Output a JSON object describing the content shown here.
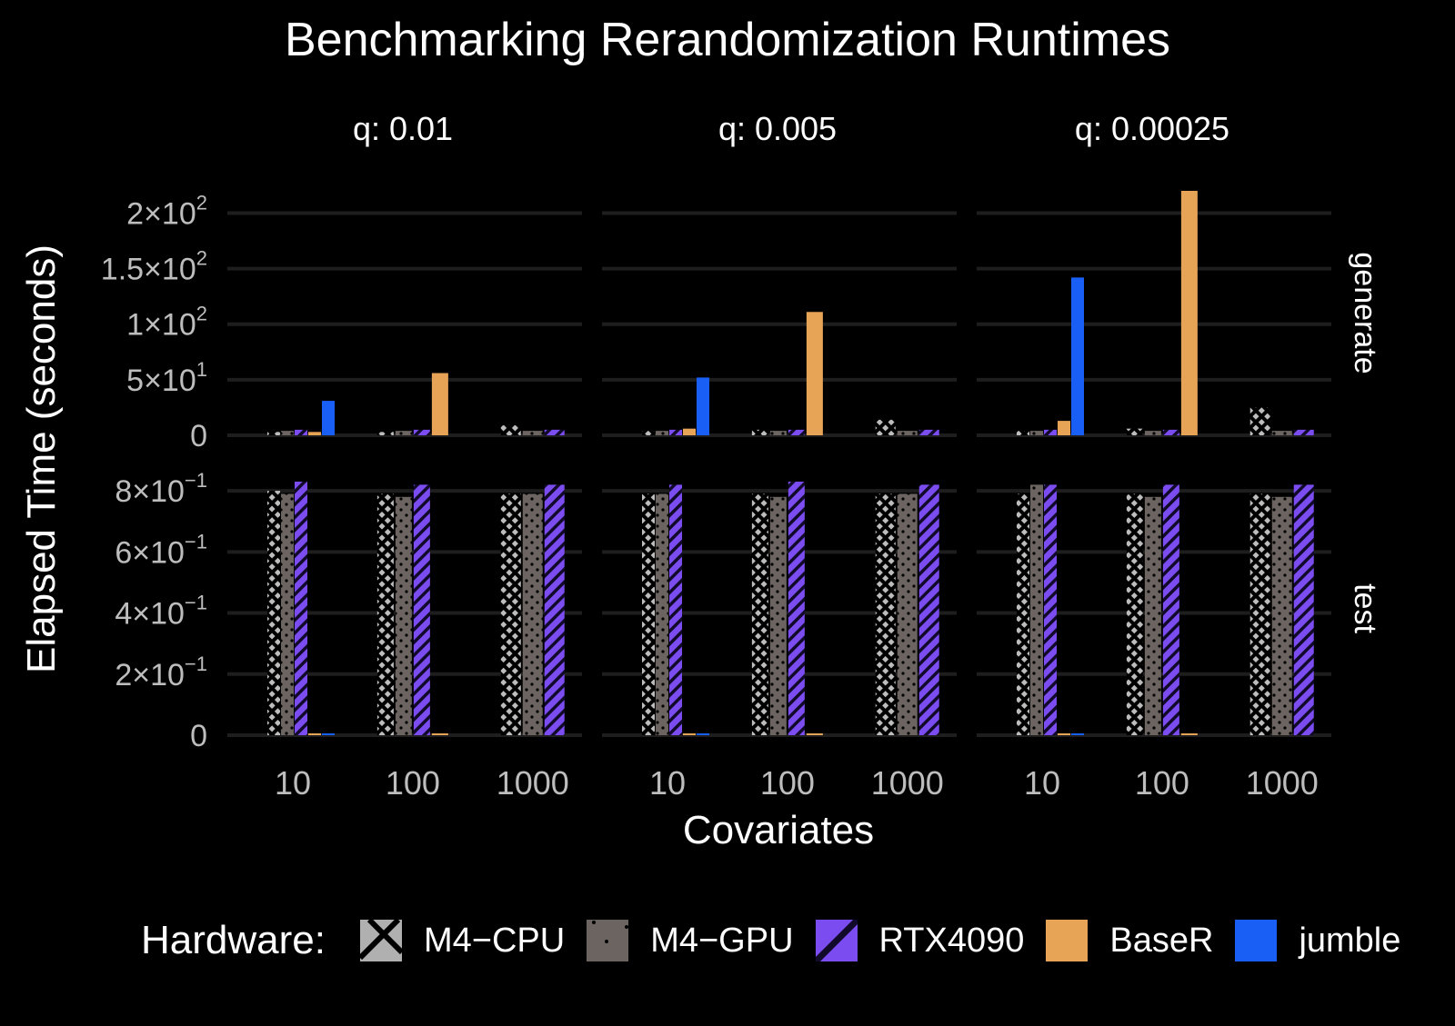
{
  "chart_data": {
    "type": "bar",
    "title": "Benchmarking Rerandomization Runtimes",
    "xlabel": "Covariates",
    "ylabel": "Elapsed Time (seconds)",
    "categories": [
      "10",
      "100",
      "1000"
    ],
    "facet_cols": [
      {
        "label": "q:  0.01"
      },
      {
        "label": "q:  0.005"
      },
      {
        "label": "q:  0.00025"
      }
    ],
    "facet_rows": [
      {
        "label": "generate",
        "ylim": [
          0,
          220
        ],
        "ticks": [
          {
            "value": 0,
            "mant": "0",
            "exp": ""
          },
          {
            "value": 50,
            "mant": "5×10",
            "exp": "1"
          },
          {
            "value": 100,
            "mant": "1×10",
            "exp": "2"
          },
          {
            "value": 150,
            "mant": "1.5×10",
            "exp": "2"
          },
          {
            "value": 200,
            "mant": "2×10",
            "exp": "2"
          }
        ]
      },
      {
        "label": "test",
        "ylim": [
          0,
          0.83
        ],
        "ticks": [
          {
            "value": 0,
            "mant": "0",
            "exp": ""
          },
          {
            "value": 0.2,
            "mant": "2×10",
            "exp": "−1"
          },
          {
            "value": 0.4,
            "mant": "4×10",
            "exp": "−1"
          },
          {
            "value": 0.6,
            "mant": "6×10",
            "exp": "−1"
          },
          {
            "value": 0.8,
            "mant": "8×10",
            "exp": "−1"
          }
        ]
      }
    ],
    "legend": {
      "title": "Hardware:",
      "position": "bottom",
      "entries": [
        {
          "name": "M4−CPU",
          "key": "M4-CPU",
          "color": "#b0b0b0",
          "pattern": "crosshatch"
        },
        {
          "name": "M4−GPU",
          "key": "M4-GPU",
          "color": "#6b6461",
          "pattern": "dots"
        },
        {
          "name": "RTX4090",
          "key": "RTX4090",
          "color": "#7b4cf0",
          "pattern": "stripes"
        },
        {
          "name": "BaseR",
          "key": "BaseR",
          "color": "#e8a456",
          "pattern": "none"
        },
        {
          "name": "jumble",
          "key": "jumble",
          "color": "#1a5ff5",
          "pattern": "none"
        }
      ]
    },
    "data": {
      "generate": [
        {
          "10": {
            "M4-CPU": 3,
            "M4-GPU": 4,
            "RTX4090": 5,
            "BaseR": 3,
            "jumble": 31
          },
          "100": {
            "M4-CPU": 3,
            "M4-GPU": 4,
            "RTX4090": 5,
            "BaseR": 56
          },
          "1000": {
            "M4-CPU": 9,
            "M4-GPU": 4,
            "RTX4090": 5
          }
        },
        {
          "10": {
            "M4-CPU": 4,
            "M4-GPU": 4,
            "RTX4090": 5,
            "BaseR": 6,
            "jumble": 52
          },
          "100": {
            "M4-CPU": 5,
            "M4-GPU": 4,
            "RTX4090": 5,
            "BaseR": 111
          },
          "1000": {
            "M4-CPU": 14,
            "M4-GPU": 4,
            "RTX4090": 5
          }
        },
        {
          "10": {
            "M4-CPU": 4,
            "M4-GPU": 4,
            "RTX4090": 5,
            "BaseR": 13,
            "jumble": 142
          },
          "100": {
            "M4-CPU": 6,
            "M4-GPU": 4,
            "RTX4090": 5,
            "BaseR": 220
          },
          "1000": {
            "M4-CPU": 25,
            "M4-GPU": 4,
            "RTX4090": 5
          }
        }
      ],
      "test": [
        {
          "10": {
            "M4-CPU": 0.8,
            "M4-GPU": 0.79,
            "RTX4090": 0.83,
            "BaseR": 0.003,
            "jumble": 0.003
          },
          "100": {
            "M4-CPU": 0.79,
            "M4-GPU": 0.78,
            "RTX4090": 0.82,
            "BaseR": 0.003
          },
          "1000": {
            "M4-CPU": 0.79,
            "M4-GPU": 0.79,
            "RTX4090": 0.82
          }
        },
        {
          "10": {
            "M4-CPU": 0.79,
            "M4-GPU": 0.79,
            "RTX4090": 0.82,
            "BaseR": 0.003,
            "jumble": 0.003
          },
          "100": {
            "M4-CPU": 0.79,
            "M4-GPU": 0.78,
            "RTX4090": 0.83,
            "BaseR": 0.003
          },
          "1000": {
            "M4-CPU": 0.79,
            "M4-GPU": 0.79,
            "RTX4090": 0.82
          }
        },
        {
          "10": {
            "M4-CPU": 0.79,
            "M4-GPU": 0.82,
            "RTX4090": 0.82,
            "BaseR": 0.003,
            "jumble": 0.003
          },
          "100": {
            "M4-CPU": 0.79,
            "M4-GPU": 0.78,
            "RTX4090": 0.82,
            "BaseR": 0.003
          },
          "1000": {
            "M4-CPU": 0.79,
            "M4-GPU": 0.78,
            "RTX4090": 0.82
          }
        }
      ]
    },
    "grid": true
  }
}
